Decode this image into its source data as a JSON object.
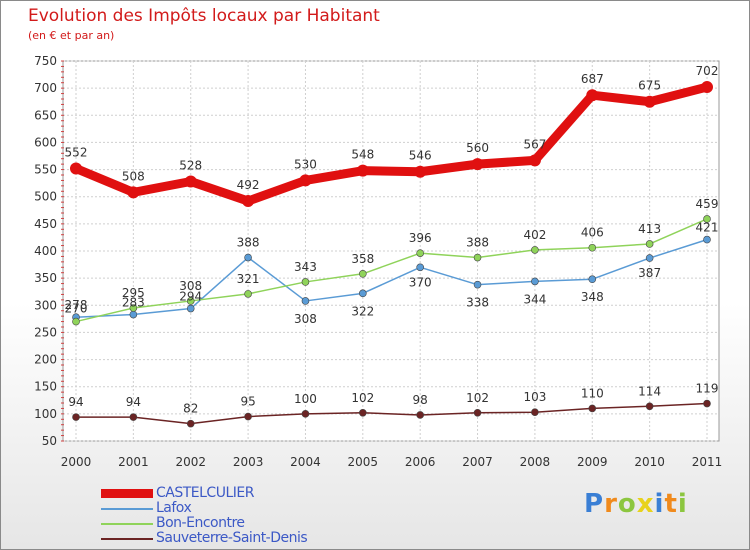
{
  "chart_data": {
    "type": "line",
    "title": "Evolution des Impôts locaux par Habitant",
    "subtitle": "(en € et par an)",
    "xlabel": "",
    "ylabel": "",
    "categories": [
      "2000",
      "2001",
      "2002",
      "2003",
      "2004",
      "2005",
      "2006",
      "2007",
      "2008",
      "2009",
      "2010",
      "2011"
    ],
    "ylim": [
      50,
      750
    ],
    "yticks": [
      50,
      100,
      150,
      200,
      250,
      300,
      350,
      400,
      450,
      500,
      550,
      600,
      650,
      700,
      750
    ],
    "grid": true,
    "legend_position": "bottom-left",
    "series": [
      {
        "name": "CASTELCULIER",
        "color": "#e01010",
        "values": [
          552,
          508,
          528,
          492,
          530,
          548,
          546,
          560,
          567,
          687,
          675,
          702
        ]
      },
      {
        "name": "Lafox",
        "color": "#5a9bd5",
        "values": [
          278,
          283,
          294,
          388,
          308,
          322,
          370,
          338,
          344,
          348,
          387,
          421
        ]
      },
      {
        "name": "Bon-Encontre",
        "color": "#8fd35a",
        "values": [
          270,
          295,
          308,
          321,
          343,
          358,
          396,
          388,
          402,
          406,
          413,
          459
        ]
      },
      {
        "name": "Sauveterre-Saint-Denis",
        "color": "#6b2424",
        "values": [
          94,
          94,
          82,
          95,
          100,
          102,
          98,
          102,
          103,
          110,
          114,
          119
        ]
      }
    ]
  },
  "brand": {
    "letters": [
      "P",
      "r",
      "o",
      "x",
      "i",
      "t",
      "i"
    ],
    "colors": [
      "#3a7fd5",
      "#f08a1c",
      "#8cc63f",
      "#e8d21c",
      "#3a7fd5",
      "#f08a1c",
      "#8cc63f"
    ]
  }
}
